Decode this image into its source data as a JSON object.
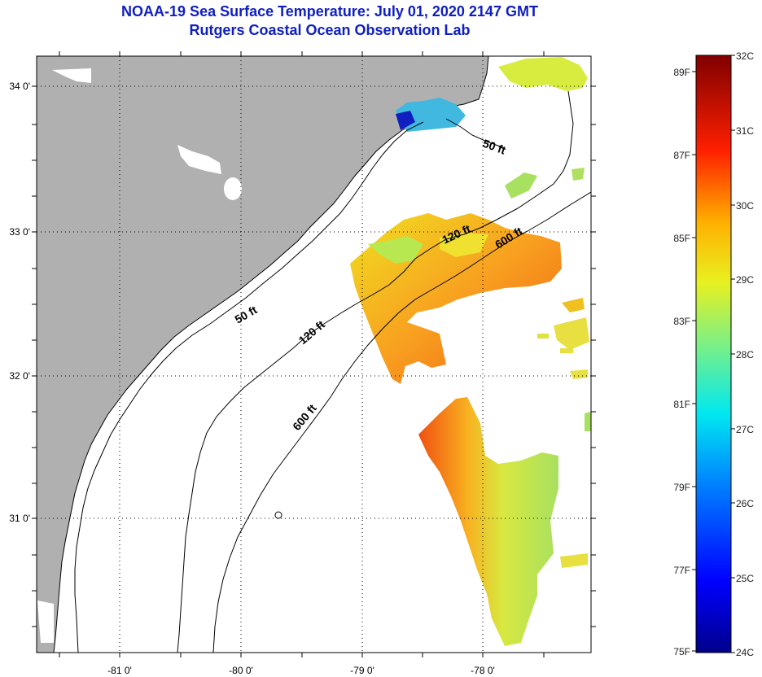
{
  "header": {
    "title": "NOAA-19 Sea Surface Temperature:  July 01, 2020 2147 GMT",
    "subtitle": "Rutgers Coastal Ocean Observation Lab"
  },
  "map": {
    "lat_labels": [
      "34 0'",
      "33 0'",
      "32 0'",
      "31 0'"
    ],
    "lon_labels": [
      "-81 0'",
      "-80 0'",
      "-79 0'",
      "-78 0'"
    ],
    "contour_labels": [
      "50 ft",
      "120 ft",
      "600 ft",
      "50 ft",
      "120 ft",
      "600 ft"
    ],
    "colors": {
      "land": "#b0b0b0",
      "ocean": "#ffffff"
    }
  },
  "colorbar": {
    "celsius_labels": [
      "32C",
      "31C",
      "30C",
      "29C",
      "28C",
      "27C",
      "26C",
      "25C",
      "24C"
    ],
    "fahrenheit_labels": [
      "89F",
      "87F",
      "85F",
      "83F",
      "81F",
      "79F",
      "77F",
      "75F"
    ],
    "colors": [
      "#00008b",
      "#0000ff",
      "#0080ff",
      "#00ffff",
      "#80ff80",
      "#ffff00",
      "#ff8000",
      "#ff0000",
      "#800000"
    ]
  }
}
